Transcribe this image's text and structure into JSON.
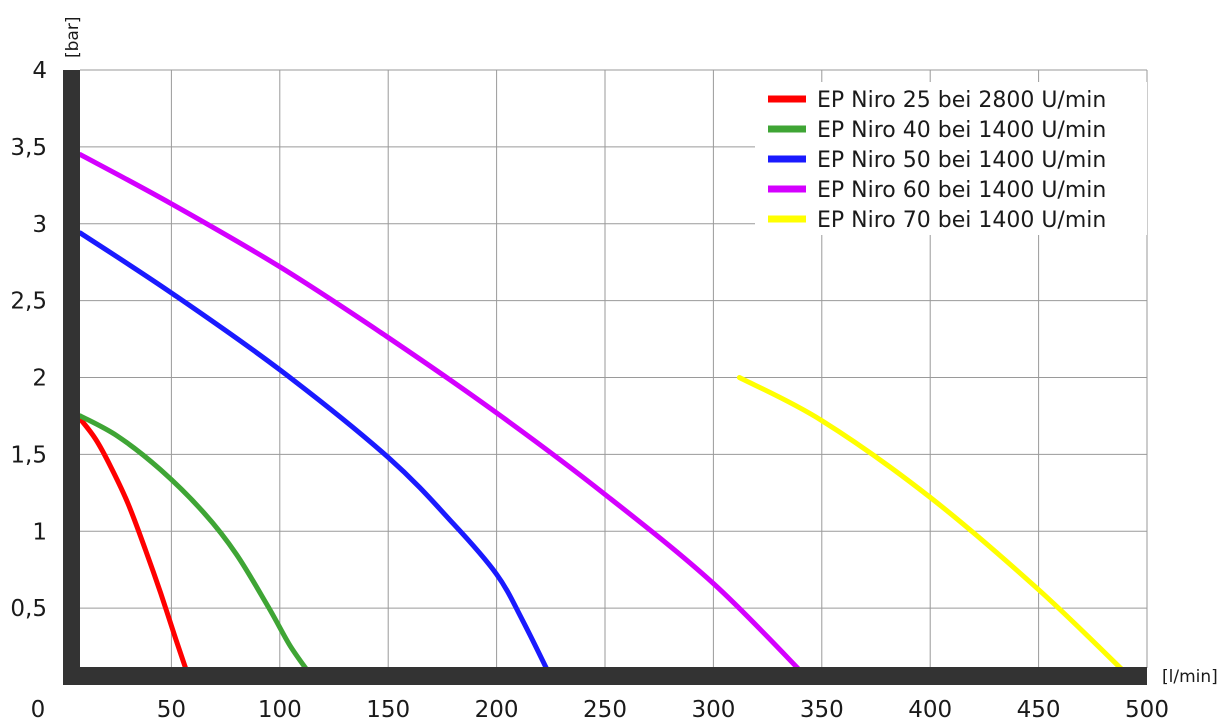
{
  "chart_data": {
    "type": "line",
    "title": "",
    "xlabel": "[l/min]",
    "ylabel": "[bar]",
    "xlim": [
      0,
      500
    ],
    "ylim": [
      0,
      4
    ],
    "x_ticks": [
      0,
      50,
      100,
      150,
      200,
      250,
      300,
      350,
      400,
      450,
      500
    ],
    "x_tick_labels": [
      "0",
      "50",
      "100",
      "150",
      "200",
      "250",
      "300",
      "350",
      "400",
      "450",
      "500"
    ],
    "y_ticks": [
      0.5,
      1,
      1.5,
      2,
      2.5,
      3,
      3.5,
      4
    ],
    "y_tick_labels": [
      "0,5",
      "1",
      "1,5",
      "2",
      "2,5",
      "3",
      "3,5",
      "4"
    ],
    "grid": true,
    "legend_position": "top-right",
    "series": [
      {
        "name": "EP Niro 25 bei 2800 U/min",
        "color": "#ff0000",
        "x": [
          8,
          15,
          22,
          30,
          38,
          45,
          52,
          58
        ],
        "y": [
          1.73,
          1.6,
          1.42,
          1.18,
          0.88,
          0.6,
          0.3,
          0.05
        ]
      },
      {
        "name": "EP Niro 40 bei 1400 U/min",
        "color": "#3fa535",
        "x": [
          8,
          25,
          45,
          65,
          80,
          95,
          105,
          115
        ],
        "y": [
          1.75,
          1.62,
          1.4,
          1.12,
          0.85,
          0.5,
          0.25,
          0.05
        ]
      },
      {
        "name": "EP Niro 50 bei 1400 U/min",
        "color": "#1a1aff",
        "x": [
          8,
          50,
          100,
          150,
          180,
          200,
          212,
          225
        ],
        "y": [
          2.94,
          2.55,
          2.05,
          1.48,
          1.05,
          0.72,
          0.42,
          0.05
        ]
      },
      {
        "name": "EP Niro 60 bei 1400 U/min",
        "color": "#d400ff",
        "x": [
          8,
          50,
          100,
          150,
          200,
          250,
          300,
          343
        ],
        "y": [
          3.45,
          3.13,
          2.72,
          2.26,
          1.77,
          1.24,
          0.66,
          0.05
        ]
      },
      {
        "name": "EP Niro 70 bei 1400 U/min",
        "color": "#ffff00",
        "x": [
          312,
          350,
          400,
          450,
          490
        ],
        "y": [
          2.0,
          1.72,
          1.22,
          0.62,
          0.08
        ]
      }
    ]
  }
}
